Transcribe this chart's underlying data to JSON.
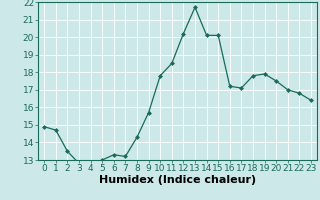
{
  "x": [
    0,
    1,
    2,
    3,
    4,
    5,
    6,
    7,
    8,
    9,
    10,
    11,
    12,
    13,
    14,
    15,
    16,
    17,
    18,
    19,
    20,
    21,
    22,
    23
  ],
  "y": [
    14.9,
    14.7,
    13.5,
    12.8,
    12.8,
    13.0,
    13.3,
    13.2,
    14.3,
    15.7,
    17.8,
    18.5,
    20.2,
    21.7,
    20.1,
    20.1,
    17.2,
    17.1,
    17.8,
    17.9,
    17.5,
    17.0,
    16.8,
    16.4
  ],
  "xlabel": "Humidex (Indice chaleur)",
  "ylim": [
    13,
    22
  ],
  "yticks": [
    13,
    14,
    15,
    16,
    17,
    18,
    19,
    20,
    21,
    22
  ],
  "xticks": [
    0,
    1,
    2,
    3,
    4,
    5,
    6,
    7,
    8,
    9,
    10,
    11,
    12,
    13,
    14,
    15,
    16,
    17,
    18,
    19,
    20,
    21,
    22,
    23
  ],
  "line_color": "#1a6b5a",
  "marker_color": "#1a6b5a",
  "bg_color": "#cce8e8",
  "grid_color": "#ffffff",
  "xlabel_fontsize": 8,
  "tick_fontsize": 6.5
}
